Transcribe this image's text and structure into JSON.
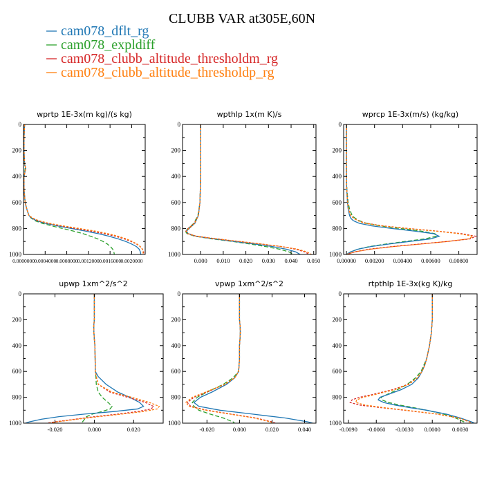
{
  "title": "CLUBB VAR at305E,60N",
  "legend": [
    {
      "name": "cam078_dflt_rg",
      "color": "#1f77b4"
    },
    {
      "name": "cam078_expldiff",
      "color": "#2ca02c"
    },
    {
      "name": "cam078_clubb_altitude_thresholdm_rg",
      "color": "#d62728"
    },
    {
      "name": "cam078_clubb_altitude_thresholdp_rg",
      "color": "#ff7f0e"
    }
  ],
  "chart_data": [
    {
      "type": "line",
      "title": "wprtp 1E-3x(m kg)/(s kg)",
      "xlim": [
        0,
        0.00225
      ],
      "ylim": [
        1000,
        0
      ],
      "x_ticks": [
        {
          "v": 0.0,
          "label": "0.0000000"
        },
        {
          "v": 0.0004,
          "label": "0.0004000"
        },
        {
          "v": 0.0008,
          "label": "0.0008000"
        },
        {
          "v": 0.0012,
          "label": "0.0012000"
        },
        {
          "v": 0.0016,
          "label": "0.0016000"
        },
        {
          "v": 0.002,
          "label": "0.0020000"
        }
      ],
      "y_ticks": [
        0,
        200,
        400,
        600,
        800,
        1000
      ],
      "y": [
        0,
        100,
        200,
        300,
        340,
        400,
        500,
        600,
        650,
        700,
        720,
        740,
        760,
        780,
        800,
        820,
        840,
        860,
        880,
        900,
        920,
        940,
        960,
        980,
        1000
      ],
      "series": [
        {
          "name": "cam078_dflt_rg",
          "x": [
            2e-05,
            1e-05,
            1e-05,
            2e-05,
            4e-05,
            1e-05,
            1e-05,
            3e-05,
            6e-05,
            0.0001,
            0.00015,
            0.00024,
            0.0004,
            0.00062,
            0.00088,
            0.00114,
            0.00138,
            0.00158,
            0.00175,
            0.00189,
            0.002,
            0.00209,
            0.00214,
            0.00216,
            0.00217
          ]
        },
        {
          "name": "cam078_expldiff",
          "x": [
            2e-05,
            1e-05,
            1e-05,
            2e-05,
            3e-05,
            1e-05,
            1e-05,
            3e-05,
            6e-05,
            0.0001,
            0.00014,
            0.00021,
            0.00034,
            0.00052,
            0.00072,
            0.00092,
            0.0011,
            0.00124,
            0.00137,
            0.00147,
            0.00155,
            0.00161,
            0.00165,
            0.00167,
            0.00168
          ]
        },
        {
          "name": "cam078_clubb_altitude_thresholdm_rg",
          "x": [
            2e-05,
            1e-05,
            1e-05,
            2e-05,
            4e-05,
            1e-05,
            1e-05,
            3e-05,
            6e-05,
            0.0001,
            0.00016,
            0.00026,
            0.00044,
            0.00068,
            0.00096,
            0.00124,
            0.00149,
            0.0017,
            0.00186,
            0.00199,
            0.00209,
            0.00216,
            0.0022,
            0.00222,
            0.00222
          ]
        },
        {
          "name": "cam078_clubb_altitude_thresholdp_rg",
          "x": [
            2e-05,
            1e-05,
            1e-05,
            2e-05,
            4e-05,
            1e-05,
            1e-05,
            3e-05,
            6e-05,
            0.0001,
            0.00017,
            0.00028,
            0.00047,
            0.00073,
            0.00103,
            0.00132,
            0.00156,
            0.00175,
            0.0019,
            0.00201,
            0.0021,
            0.00216,
            0.0022,
            0.00221,
            0.00221
          ]
        }
      ]
    },
    {
      "type": "line",
      "title": "wpthlp 1x(m K)/s",
      "xlim": [
        -0.008,
        0.051
      ],
      "ylim": [
        1000,
        0
      ],
      "x_ticks": [
        {
          "v": 0.0,
          "label": "0.000"
        },
        {
          "v": 0.01,
          "label": "0.010"
        },
        {
          "v": 0.02,
          "label": "0.020"
        },
        {
          "v": 0.03,
          "label": "0.030"
        },
        {
          "v": 0.04,
          "label": "0.040"
        },
        {
          "v": 0.05,
          "label": "0.050"
        }
      ],
      "y_ticks": [
        0,
        200,
        400,
        600,
        800,
        1000
      ],
      "y": [
        0,
        200,
        400,
        600,
        700,
        760,
        800,
        820,
        840,
        860,
        880,
        900,
        920,
        940,
        960,
        980,
        1000
      ],
      "series": [
        {
          "name": "cam078_dflt_rg",
          "x": [
            0.0,
            0.0,
            0.0,
            -0.0003,
            -0.001,
            -0.0025,
            -0.005,
            -0.0062,
            -0.0055,
            -0.002,
            0.006,
            0.015,
            0.024,
            0.032,
            0.038,
            0.042,
            0.044
          ]
        },
        {
          "name": "cam078_expldiff",
          "x": [
            0.0,
            0.0,
            0.0,
            -0.0003,
            -0.0012,
            -0.003,
            -0.0055,
            -0.0068,
            -0.006,
            -0.0025,
            0.005,
            0.014,
            0.022,
            0.029,
            0.035,
            0.039,
            0.041
          ]
        },
        {
          "name": "cam078_clubb_altitude_thresholdm_rg",
          "x": [
            0.0,
            0.0,
            0.0,
            -0.0003,
            -0.001,
            -0.0028,
            -0.0055,
            -0.0065,
            -0.0058,
            -0.002,
            0.007,
            0.017,
            0.027,
            0.036,
            0.042,
            0.046,
            0.048
          ]
        },
        {
          "name": "cam078_clubb_altitude_thresholdp_rg",
          "x": [
            0.0,
            0.0,
            0.0,
            -0.0003,
            -0.001,
            -0.0026,
            -0.0052,
            -0.0063,
            -0.0056,
            -0.0018,
            0.007,
            0.017,
            0.027,
            0.036,
            0.043,
            0.047,
            0.049
          ]
        }
      ]
    },
    {
      "type": "line",
      "title": "wprcp 1E-3x(m/s) (kg/kg)",
      "xlim": [
        -0.0002,
        0.0093
      ],
      "ylim": [
        1000,
        0
      ],
      "x_ticks": [
        {
          "v": 0.0,
          "label": "0.00000"
        },
        {
          "v": 0.002,
          "label": "0.00200"
        },
        {
          "v": 0.004,
          "label": "0.00400"
        },
        {
          "v": 0.006,
          "label": "0.00600"
        },
        {
          "v": 0.008,
          "label": "0.00800"
        }
      ],
      "y_ticks": [
        0,
        200,
        400,
        600,
        800,
        1000
      ],
      "y": [
        0,
        200,
        300,
        400,
        500,
        600,
        650,
        700,
        720,
        740,
        760,
        780,
        800,
        820,
        840,
        860,
        880,
        900,
        920,
        940,
        960,
        980,
        1000
      ],
      "series": [
        {
          "name": "cam078_dflt_rg",
          "x": [
            0.0,
            0.0,
            0.0,
            0.0,
            2e-05,
            7e-05,
            0.00012,
            0.00022,
            0.0003,
            0.00048,
            0.0009,
            0.0018,
            0.0032,
            0.0048,
            0.0062,
            0.0066,
            0.006,
            0.0045,
            0.003,
            0.0017,
            0.0008,
            0.0003,
            0.0
          ]
        },
        {
          "name": "cam078_expldiff",
          "x": [
            0.0,
            0.0,
            0.0,
            0.0,
            3e-05,
            0.00012,
            0.00022,
            0.0004,
            0.0006,
            0.0009,
            0.0014,
            0.0024,
            0.0038,
            0.0053,
            0.0063,
            0.0064,
            0.0056,
            0.0042,
            0.0028,
            0.0016,
            0.0008,
            0.0003,
            0.0
          ]
        },
        {
          "name": "cam078_clubb_altitude_thresholdm_rg",
          "x": [
            0.0,
            0.0,
            0.0,
            0.0,
            2e-05,
            8e-05,
            0.00015,
            0.0003,
            0.0005,
            0.0008,
            0.0014,
            0.0026,
            0.0044,
            0.0064,
            0.0082,
            0.0092,
            0.0088,
            0.0072,
            0.0052,
            0.0032,
            0.0016,
            0.0006,
            0.0
          ]
        },
        {
          "name": "cam078_clubb_altitude_thresholdp_rg",
          "x": [
            0.0,
            0.0,
            0.0,
            0.0,
            2e-05,
            8e-05,
            0.00014,
            0.0003,
            0.0005,
            0.0008,
            0.0013,
            0.0025,
            0.0043,
            0.0063,
            0.008,
            0.009,
            0.0087,
            0.0072,
            0.0053,
            0.0033,
            0.0017,
            0.0006,
            0.0
          ]
        }
      ]
    },
    {
      "type": "line",
      "title": "upwp 1xm^2/s^2",
      "xlim": [
        -0.036,
        0.035
      ],
      "ylim": [
        1000,
        0
      ],
      "x_ticks": [
        {
          "v": -0.02,
          "label": "-0.020"
        },
        {
          "v": 0.0,
          "label": "0.000"
        },
        {
          "v": 0.02,
          "label": "0.020"
        }
      ],
      "y_ticks": [
        0,
        200,
        400,
        600,
        800,
        1000
      ],
      "y": [
        0,
        100,
        200,
        250,
        300,
        350,
        400,
        500,
        600,
        640,
        700,
        760,
        800,
        840,
        870,
        890,
        910,
        930,
        950,
        970,
        990,
        1000
      ],
      "series": [
        {
          "name": "cam078_dflt_rg",
          "x": [
            0.0,
            0.0,
            0.0,
            -0.0003,
            -0.0002,
            0.0,
            0.0003,
            0.0004,
            0.0005,
            0.002,
            0.006,
            0.012,
            0.018,
            0.023,
            0.025,
            0.022,
            0.01,
            -0.005,
            -0.018,
            -0.027,
            -0.033,
            -0.035
          ]
        },
        {
          "name": "cam078_expldiff",
          "x": [
            0.0,
            0.0,
            0.0,
            -0.0003,
            -0.0002,
            0.0,
            0.0003,
            0.0004,
            0.0005,
            0.0008,
            0.001,
            0.002,
            0.004,
            0.007,
            0.009,
            0.008,
            0.004,
            -0.001,
            -0.004,
            -0.005,
            -0.006,
            -0.006
          ]
        },
        {
          "name": "cam078_clubb_altitude_thresholdm_rg",
          "x": [
            0.0,
            0.0,
            0.0,
            -0.0003,
            -0.0002,
            0.0,
            0.0003,
            0.0004,
            0.0005,
            0.001,
            0.002,
            0.008,
            0.017,
            0.026,
            0.03,
            0.029,
            0.022,
            0.012,
            0.0,
            -0.01,
            -0.02,
            -0.024
          ]
        },
        {
          "name": "cam078_clubb_altitude_thresholdp_rg",
          "x": [
            0.0,
            0.0,
            0.0,
            -0.0003,
            -0.0002,
            0.0,
            0.0003,
            0.0004,
            0.0005,
            0.001,
            0.002,
            0.009,
            0.019,
            0.028,
            0.033,
            0.032,
            0.025,
            0.014,
            0.002,
            -0.009,
            -0.019,
            -0.023
          ]
        }
      ]
    },
    {
      "type": "line",
      "title": "vpwp 1xm^2/s^2",
      "xlim": [
        -0.035,
        0.047
      ],
      "ylim": [
        1000,
        0
      ],
      "x_ticks": [
        {
          "v": -0.02,
          "label": "-0.020"
        },
        {
          "v": 0.0,
          "label": "0.000"
        },
        {
          "v": 0.02,
          "label": "0.020"
        },
        {
          "v": 0.04,
          "label": "0.040"
        }
      ],
      "y_ticks": [
        0,
        200,
        400,
        600,
        800,
        1000
      ],
      "y": [
        0,
        100,
        200,
        250,
        300,
        350,
        400,
        500,
        600,
        650,
        700,
        760,
        800,
        840,
        870,
        900,
        930,
        960,
        990,
        1000
      ],
      "series": [
        {
          "name": "cam078_dflt_rg",
          "x": [
            0.0,
            0.0,
            0.0,
            0.0004,
            0.0005,
            0.0003,
            0.0,
            0.0,
            -0.0005,
            -0.003,
            -0.008,
            -0.017,
            -0.024,
            -0.028,
            -0.025,
            -0.012,
            0.008,
            0.028,
            0.042,
            0.045
          ]
        },
        {
          "name": "cam078_expldiff",
          "x": [
            0.0,
            0.0,
            0.0,
            0.0004,
            0.0005,
            0.0003,
            0.0,
            0.0,
            -0.0006,
            -0.004,
            -0.01,
            -0.02,
            -0.026,
            -0.029,
            -0.028,
            -0.025,
            -0.018,
            -0.01,
            -0.004,
            -0.003
          ]
        },
        {
          "name": "cam078_clubb_altitude_thresholdm_rg",
          "x": [
            0.0,
            0.0,
            0.0,
            0.0004,
            0.0005,
            0.0003,
            0.0,
            0.0,
            -0.0005,
            -0.003,
            -0.009,
            -0.02,
            -0.028,
            -0.032,
            -0.03,
            -0.02,
            -0.005,
            0.01,
            0.02,
            0.022
          ]
        },
        {
          "name": "cam078_clubb_altitude_thresholdp_rg",
          "x": [
            0.0,
            0.0,
            0.0,
            0.0004,
            0.0005,
            0.0003,
            0.0,
            0.0,
            -0.0005,
            -0.003,
            -0.009,
            -0.021,
            -0.029,
            -0.033,
            -0.031,
            -0.021,
            -0.006,
            0.009,
            0.019,
            0.021
          ]
        }
      ]
    },
    {
      "type": "line",
      "title": "rtpthlp 1E-3x(kg K)/kg",
      "xlim": [
        -0.0095,
        0.0048
      ],
      "ylim": [
        1000,
        0
      ],
      "x_ticks": [
        {
          "v": -0.009,
          "label": "-0.0090"
        },
        {
          "v": -0.006,
          "label": "-0.0060"
        },
        {
          "v": -0.003,
          "label": "-0.0030"
        },
        {
          "v": 0.0,
          "label": "0.0000"
        },
        {
          "v": 0.003,
          "label": "0.0030"
        }
      ],
      "y_ticks": [
        0,
        200,
        400,
        600,
        800,
        1000
      ],
      "y": [
        0,
        200,
        300,
        400,
        500,
        550,
        600,
        650,
        700,
        740,
        780,
        800,
        820,
        840,
        860,
        880,
        900,
        930,
        960,
        990,
        1000
      ],
      "series": [
        {
          "name": "cam078_dflt_rg",
          "x": [
            0.0,
            0.0,
            -0.0001,
            -0.0003,
            -0.0006,
            -0.0008,
            -0.0011,
            -0.0015,
            -0.0022,
            -0.0033,
            -0.0048,
            -0.0056,
            -0.0058,
            -0.0052,
            -0.004,
            -0.0024,
            -0.0006,
            0.0015,
            0.003,
            0.0042,
            0.0045
          ]
        },
        {
          "name": "cam078_expldiff",
          "x": [
            0.0,
            0.0,
            -0.0001,
            -0.0003,
            -0.0006,
            -0.0009,
            -0.0012,
            -0.0018,
            -0.0027,
            -0.0037,
            -0.0049,
            -0.0055,
            -0.0054,
            -0.0047,
            -0.0035,
            -0.002,
            -0.0006,
            0.0012,
            0.0025,
            0.0034,
            0.0036
          ]
        },
        {
          "name": "cam078_clubb_altitude_thresholdm_rg",
          "x": [
            0.0,
            0.0,
            -0.0001,
            -0.0003,
            -0.0006,
            -0.0008,
            -0.0011,
            -0.0016,
            -0.0026,
            -0.0042,
            -0.0065,
            -0.0078,
            -0.0086,
            -0.0088,
            -0.0078,
            -0.0055,
            -0.003,
            0.0005,
            0.0028,
            0.004,
            0.0042
          ]
        },
        {
          "name": "cam078_clubb_altitude_thresholdp_rg",
          "x": [
            0.0,
            0.0,
            -0.0001,
            -0.0003,
            -0.0006,
            -0.0008,
            -0.0011,
            -0.0016,
            -0.0025,
            -0.004,
            -0.0062,
            -0.0074,
            -0.0081,
            -0.0082,
            -0.0072,
            -0.0052,
            -0.0028,
            0.0006,
            0.0028,
            0.004,
            0.0042
          ]
        }
      ]
    }
  ]
}
